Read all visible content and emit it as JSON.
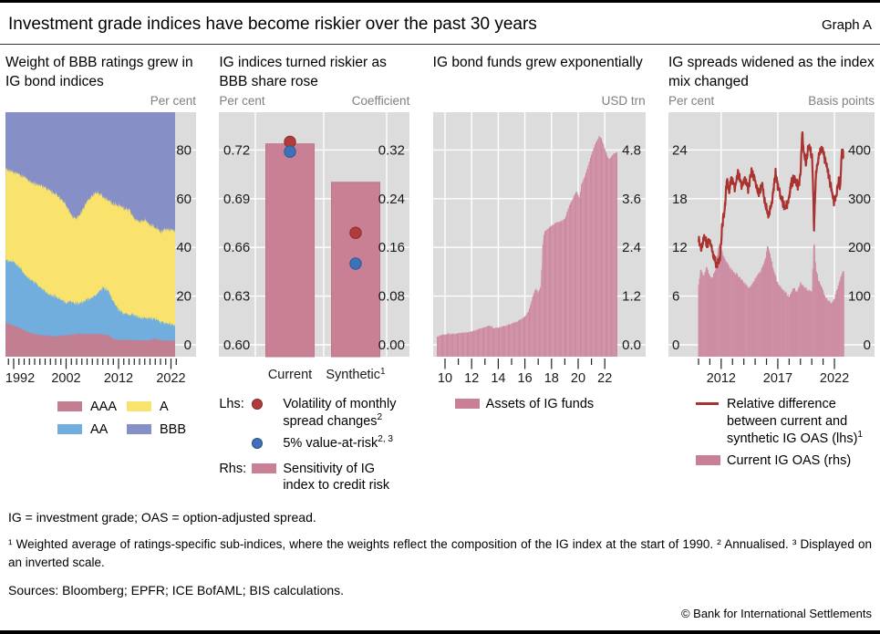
{
  "header": {
    "title": "Investment grade indices have become riskier over the past 30 years",
    "graph_label": "Graph A"
  },
  "colors": {
    "plot_bg": "#dcdcdc",
    "grid": "#ffffff",
    "bar_pink": "#ca8094",
    "bar_edge": "#bd7589",
    "bar_base": "#dcadbb",
    "bar_stripe": "#c8829b",
    "line_red": "#a93330",
    "aaa": "#c17f91",
    "aa": "#72aedd",
    "a": "#f9e36c",
    "bbb": "#8690c6",
    "dot_red": "#b23b3c",
    "dot_blue": "#3d72b8"
  },
  "panels": [
    {
      "title": "Weight of BBB ratings grew in IG bond indices",
      "unit_left": "",
      "unit_right": "Per cent",
      "legend": [
        {
          "marker": "swatch",
          "color": "#c17f91",
          "label": "AAA",
          "sup": ""
        },
        {
          "marker": "swatch",
          "color": "#72aedd",
          "label": "AA",
          "sup": ""
        },
        {
          "marker": "swatch",
          "color": "#f9e36c",
          "label": "A",
          "sup": ""
        },
        {
          "marker": "swatch",
          "color": "#8690c6",
          "label": "BBB",
          "sup": ""
        }
      ]
    },
    {
      "title": "IG indices turned riskier as BBB share rose",
      "unit_left": "Per cent",
      "unit_right": "Coefficient",
      "legend": [
        {
          "prefix": "Lhs:",
          "marker": "dot",
          "color": "#b23b3c",
          "label": "Volatility of monthly spread changes",
          "sup": "2"
        },
        {
          "prefix": "",
          "marker": "dot",
          "color": "#3d72b8",
          "label": "5% value-at-risk",
          "sup": "2, 3"
        },
        {
          "prefix": "Rhs:",
          "marker": "swatch",
          "color": "#ca8094",
          "label": "Sensitivity of IG index to credit risk",
          "sup": ""
        }
      ]
    },
    {
      "title": "IG bond funds grew exponentially",
      "unit_left": "",
      "unit_right": "USD trn",
      "legend": [
        {
          "marker": "swatch",
          "color": "#ca8094",
          "label": "Assets of IG funds",
          "sup": ""
        }
      ]
    },
    {
      "title": "IG spreads widened as the index mix changed",
      "unit_left": "Per cent",
      "unit_right": "Basis points",
      "legend": [
        {
          "marker": "line",
          "color": "#a93330",
          "label": "Relative difference between current and synthetic IG OAS (lhs)",
          "sup": "1"
        },
        {
          "marker": "swatch",
          "color": "#ca8094",
          "label": "Current IG OAS (rhs)",
          "sup": ""
        }
      ]
    }
  ],
  "chart_data": [
    {
      "type": "area",
      "subtype": "stacked",
      "title": "Weight of BBB ratings grew in IG bond indices",
      "ylabel": "Per cent",
      "ylim": [
        0,
        100
      ],
      "ytick_labels": [
        "80",
        "60",
        "40",
        "20",
        "0"
      ],
      "xticks": [
        1992,
        2002,
        2012,
        2022
      ],
      "x": [
        1990.5,
        1992,
        1993,
        1994,
        1995,
        1996,
        1997,
        1998,
        1999,
        2000,
        2001,
        2002,
        2003,
        2004,
        2005,
        2006,
        2007,
        2008,
        2009,
        2010,
        2011,
        2012,
        2013,
        2014,
        2015,
        2016,
        2017,
        2018,
        2019,
        2020,
        2021,
        2022,
        2022.9
      ],
      "series": [
        {
          "name": "AAA",
          "color": "#c17f91",
          "values": [
            9,
            8,
            7,
            6,
            5,
            4.5,
            4,
            4,
            3.5,
            3.5,
            3.8,
            4,
            4.2,
            4.5,
            4.5,
            4.5,
            4.5,
            4.5,
            4.3,
            4,
            2.5,
            2,
            2,
            2,
            2,
            1.8,
            1.8,
            2,
            2.5,
            2,
            1.8,
            1.8,
            1.8
          ]
        },
        {
          "name": "AA",
          "color": "#72aedd",
          "values": [
            26,
            26,
            25,
            23.5,
            22,
            21,
            19.5,
            18,
            17,
            16.5,
            14.7,
            13.5,
            13.3,
            12.5,
            13,
            14,
            15,
            16.5,
            19.2,
            18.5,
            15.5,
            12.5,
            11,
            10.5,
            10,
            9.2,
            9.2,
            9,
            8,
            7.5,
            7.2,
            6.7,
            6.7
          ]
        },
        {
          "name": "A",
          "color": "#f9e36c",
          "values": [
            37,
            37,
            38,
            39.5,
            40.5,
            40.5,
            42,
            42.5,
            42.5,
            42,
            41.5,
            40,
            36,
            34.5,
            37.5,
            40,
            42,
            41.5,
            37.5,
            37,
            40,
            43,
            43,
            43,
            40,
            39.5,
            40,
            38.5,
            37.5,
            37,
            38.5,
            38.5,
            38.5
          ]
        },
        {
          "name": "BBB",
          "color": "#8690c6",
          "values": [
            28,
            29,
            30,
            31,
            32.5,
            34,
            34.5,
            35.5,
            37,
            38,
            40,
            42.5,
            46.5,
            48.5,
            45,
            41.5,
            38.5,
            37.5,
            39,
            40.5,
            42,
            42.5,
            44,
            44.5,
            48,
            49.5,
            49,
            50.5,
            52,
            53.5,
            52.5,
            53,
            53
          ]
        }
      ]
    },
    {
      "type": "bar",
      "title": "IG indices turned riskier as BBB share rose",
      "categories": [
        {
          "label": "Current",
          "sup": ""
        },
        {
          "label": "Synthetic",
          "sup": "1"
        }
      ],
      "left_axis": {
        "label": "Per cent",
        "tick_labels": [
          "0.72",
          "0.69",
          "0.66",
          "0.63",
          "0.60"
        ],
        "tick_values": [
          0.72,
          0.69,
          0.66,
          0.63,
          0.6
        ]
      },
      "right_axis": {
        "label": "Coefficient",
        "tick_labels": [
          "0.32",
          "0.24",
          "0.16",
          "0.08",
          "0.00"
        ],
        "tick_values": [
          0.32,
          0.24,
          0.16,
          0.08,
          0.0
        ]
      },
      "bars": {
        "series": "Sensitivity of IG index to credit risk",
        "axis": "rhs",
        "values": [
          0.33,
          0.267
        ]
      },
      "points": [
        {
          "series": "Volatility of monthly spread changes",
          "axis": "lhs",
          "color": "#b23b3c",
          "stroke": "#8c2d2f",
          "values": [
            0.725,
            0.669
          ]
        },
        {
          "series": "5% value-at-risk",
          "axis": "lhs",
          "inverted_scale": true,
          "color": "#3d72b8",
          "stroke": "#2d589b",
          "values": [
            0.719,
            0.65
          ]
        }
      ]
    },
    {
      "type": "bar",
      "title": "IG bond funds grew exponentially",
      "ylabel": "USD trn",
      "ytick_labels": [
        "4.8",
        "3.6",
        "2.4",
        "1.2",
        "0.0"
      ],
      "ytick_values": [
        4.8,
        3.6,
        2.4,
        1.2,
        0.0
      ],
      "xtick_years": [
        2010,
        2012,
        2014,
        2016,
        2018,
        2020,
        2022
      ],
      "xtick_labels": [
        "10",
        "12",
        "14",
        "16",
        "18",
        "20",
        "22"
      ],
      "series_name": "Assets of IG funds",
      "x": [
        2009.4,
        2009.8,
        2010.2,
        2010.6,
        2011.0,
        2011.5,
        2012.0,
        2012.5,
        2013.0,
        2013.4,
        2013.7,
        2014.0,
        2014.5,
        2015.0,
        2015.5,
        2016.0,
        2016.3,
        2016.6,
        2016.8,
        2017.0,
        2017.2,
        2017.35,
        2017.5,
        2017.8,
        2018.1,
        2018.4,
        2018.8,
        2019.0,
        2019.3,
        2019.6,
        2019.9,
        2020.1,
        2020.25,
        2020.5,
        2020.8,
        2021.0,
        2021.3,
        2021.6,
        2021.8,
        2022.0,
        2022.3,
        2022.6,
        2022.9
      ],
      "values": [
        0.21,
        0.24,
        0.27,
        0.26,
        0.28,
        0.3,
        0.33,
        0.38,
        0.44,
        0.47,
        0.41,
        0.42,
        0.46,
        0.52,
        0.58,
        0.7,
        0.85,
        1.2,
        1.38,
        1.3,
        1.45,
        2.6,
        2.8,
        2.88,
        2.95,
        3.02,
        3.05,
        3.1,
        3.4,
        3.6,
        3.8,
        3.6,
        3.95,
        4.15,
        4.45,
        4.7,
        4.95,
        5.15,
        5.05,
        4.85,
        4.55,
        4.7,
        4.75
      ]
    },
    {
      "type": "line+area",
      "title": "IG spreads widened as the index mix changed",
      "left_axis": {
        "label": "Per cent",
        "tick_labels": [
          "24",
          "18",
          "12",
          "6",
          "0"
        ],
        "tick_values": [
          24,
          18,
          12,
          6,
          0
        ]
      },
      "right_axis": {
        "label": "Basis points",
        "tick_labels": [
          "400",
          "300",
          "200",
          "100",
          "0"
        ],
        "tick_values": [
          400,
          300,
          200,
          100,
          0
        ]
      },
      "xticks": [
        2012,
        2017,
        2022
      ],
      "line": {
        "name": "Relative difference between current and synthetic IG OAS (lhs)",
        "x": [
          2010.0,
          2010.25,
          2010.5,
          2010.75,
          2011.0,
          2011.3,
          2011.6,
          2011.9,
          2012.1,
          2012.3,
          2012.5,
          2012.7,
          2012.9,
          2013.2,
          2013.5,
          2013.8,
          2014.1,
          2014.4,
          2014.7,
          2015.0,
          2015.3,
          2015.6,
          2015.9,
          2016.2,
          2016.5,
          2016.8,
          2017.0,
          2017.3,
          2017.6,
          2017.9,
          2018.2,
          2018.5,
          2018.8,
          2019.0,
          2019.15,
          2019.3,
          2019.5,
          2019.7,
          2019.9,
          2020.05,
          2020.2,
          2020.35,
          2020.5,
          2020.7,
          2020.9,
          2021.1,
          2021.4,
          2021.7,
          2021.95,
          2022.15,
          2022.35,
          2022.5,
          2022.65,
          2022.8
        ],
        "values": [
          13.0,
          11.7,
          13.4,
          12.3,
          12.9,
          11.2,
          9.8,
          10.6,
          14.8,
          16.5,
          20.2,
          18.8,
          20.6,
          19.3,
          21.2,
          19.6,
          20.4,
          19.2,
          21.4,
          20.2,
          18.6,
          19.8,
          17.2,
          15.9,
          17.8,
          21.2,
          19.6,
          18.2,
          16.9,
          17.6,
          19.9,
          20.6,
          19.4,
          21.0,
          26.2,
          23.6,
          22.4,
          24.6,
          23.8,
          22.8,
          14.4,
          20.5,
          22.3,
          23.6,
          24.2,
          23.2,
          21.6,
          19.4,
          17.6,
          18.2,
          20.3,
          19.2,
          23.9,
          23.2
        ]
      },
      "area": {
        "name": "Current IG OAS (rhs)",
        "x": [
          2010.0,
          2010.2,
          2010.45,
          2010.7,
          2010.9,
          2011.2,
          2011.5,
          2011.8,
          2012.0,
          2012.3,
          2012.6,
          2013.0,
          2013.5,
          2014.0,
          2014.5,
          2015.0,
          2015.5,
          2015.9,
          2016.1,
          2016.3,
          2016.6,
          2017.0,
          2017.5,
          2018.0,
          2018.4,
          2018.7,
          2019.0,
          2019.4,
          2019.7,
          2020.0,
          2020.2,
          2020.35,
          2020.6,
          2020.9,
          2021.2,
          2021.5,
          2021.8,
          2022.0,
          2022.3,
          2022.55,
          2022.8
        ],
        "values": [
          125,
          158,
          138,
          162,
          148,
          135,
          155,
          208,
          198,
          178,
          165,
          152,
          142,
          128,
          116,
          136,
          152,
          178,
          205,
          188,
          158,
          126,
          112,
          98,
          118,
          108,
          128,
          118,
          112,
          108,
          228,
          158,
          132,
          118,
          98,
          88,
          86,
          96,
          118,
          138,
          152
        ]
      }
    }
  ],
  "footer": {
    "definitions": "IG = investment grade; OAS = option-adjusted spread.",
    "footnote": "¹  Weighted average of ratings-specific sub-indices, where the weights reflect the composition of the IG index at the start of 1990.   ²  Annualised.   ³  Displayed on an inverted scale.",
    "sources": "Sources: Bloomberg; EPFR; ICE BofAML; BIS calculations.",
    "copyright": "© Bank for International Settlements"
  }
}
